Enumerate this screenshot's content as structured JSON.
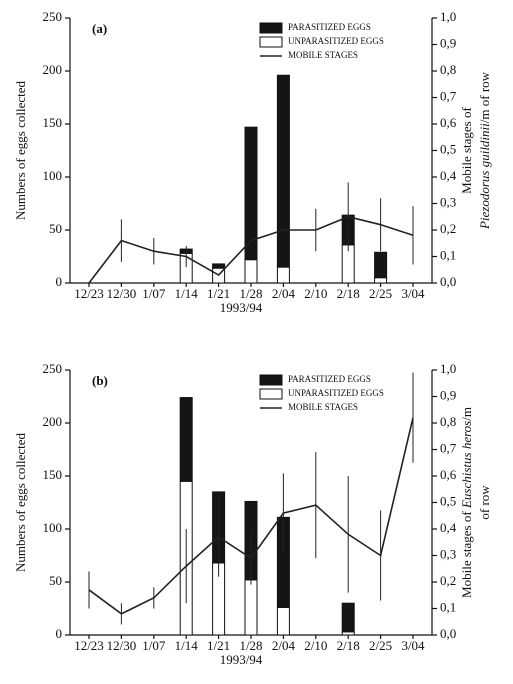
{
  "chart_data": [
    {
      "type": "bar",
      "label": "(a)",
      "ylabel": "Numbers of eggs collected",
      "y2label": [
        [
          {
            "text": "Mobile stages of",
            "italic": false
          }
        ],
        [
          {
            "text": "Piezodorus guildinii",
            "italic": true
          },
          {
            "text": "/m of row",
            "italic": false
          }
        ]
      ],
      "xlabel": "1993/94",
      "categories": [
        "12/23",
        "12/30",
        "1/07",
        "1/14",
        "1/21",
        "1/28",
        "2/04",
        "2/10",
        "2/18",
        "2/25",
        "3/04"
      ],
      "ylim": [
        0,
        250
      ],
      "yticks": [
        0,
        50,
        100,
        150,
        200,
        250
      ],
      "y2lim": [
        0,
        1
      ],
      "y2ticks": [
        {
          "value": 0,
          "label": "0,0"
        },
        {
          "value": 0.1,
          "label": "0,1"
        },
        {
          "value": 0.2,
          "label": "0,2"
        },
        {
          "value": 0.3,
          "label": "0,3"
        },
        {
          "value": 0.4,
          "label": "0,4"
        },
        {
          "value": 0.5,
          "label": "0,5"
        },
        {
          "value": 0.6,
          "label": "0,6"
        },
        {
          "value": 0.7,
          "label": "0,7"
        },
        {
          "value": 0.8,
          "label": "0,8"
        },
        {
          "value": 0.9,
          "label": "0,9"
        },
        {
          "value": 1,
          "label": "1,0"
        }
      ],
      "series": [
        {
          "name": "PARASITIZED EGGS",
          "color": "#151515",
          "values": [
            null,
            null,
            null,
            4,
            4,
            125,
            181,
            null,
            28,
            24,
            null
          ]
        },
        {
          "name": "UNPARASITIZED EGGS",
          "color": "#ffffff",
          "values": [
            null,
            null,
            null,
            28,
            14,
            22,
            15,
            null,
            36,
            5,
            null
          ]
        },
        {
          "name": "MOBILE STAGES",
          "type": "line",
          "axis": "y2",
          "color": "#222222",
          "values": [
            0.0,
            0.16,
            0.12,
            0.1,
            0.03,
            0.16,
            0.2,
            0.2,
            0.25,
            0.22,
            0.18
          ],
          "errors": [
            null,
            0.08,
            0.05,
            0.04,
            null,
            null,
            null,
            0.08,
            0.13,
            0.1,
            0.11
          ]
        }
      ]
    },
    {
      "type": "bar",
      "label": "(b)",
      "ylabel": "Numbers of eggs collected",
      "y2label": [
        [
          {
            "text": "Mobile stages of ",
            "italic": false
          },
          {
            "text": "Euschistus heros",
            "italic": true
          },
          {
            "text": "/m",
            "italic": false
          }
        ],
        [
          {
            "text": "of row",
            "italic": false
          }
        ]
      ],
      "xlabel": "1993/94",
      "categories": [
        "12/23",
        "12/30",
        "1/07",
        "1/14",
        "1/21",
        "1/28",
        "2/04",
        "2/10",
        "2/18",
        "2/25",
        "3/04"
      ],
      "ylim": [
        0,
        250
      ],
      "yticks": [
        0,
        50,
        100,
        150,
        200,
        250
      ],
      "y2lim": [
        0,
        1
      ],
      "y2ticks": [
        {
          "value": 0,
          "label": "0,0"
        },
        {
          "value": 0.1,
          "label": "0,1"
        },
        {
          "value": 0.2,
          "label": "0,2"
        },
        {
          "value": 0.3,
          "label": "0,3"
        },
        {
          "value": 0.4,
          "label": "0,4"
        },
        {
          "value": 0.5,
          "label": "0,5"
        },
        {
          "value": 0.6,
          "label": "0,6"
        },
        {
          "value": 0.7,
          "label": "0,7"
        },
        {
          "value": 0.8,
          "label": "0,8"
        },
        {
          "value": 0.9,
          "label": "0,9"
        },
        {
          "value": 1,
          "label": "1,0"
        }
      ],
      "series": [
        {
          "name": "PARASITIZED EGGS",
          "color": "#151515",
          "values": [
            null,
            null,
            null,
            79,
            67,
            74,
            85,
            null,
            27,
            null,
            null
          ]
        },
        {
          "name": "UNPARASITIZED EGGS",
          "color": "#ffffff",
          "values": [
            null,
            null,
            null,
            145,
            68,
            52,
            26,
            null,
            3,
            null,
            null
          ]
        },
        {
          "name": "MOBILE STAGES",
          "type": "line",
          "axis": "y2",
          "color": "#222222",
          "values": [
            0.17,
            0.08,
            0.14,
            0.26,
            0.37,
            0.29,
            0.46,
            0.49,
            0.38,
            0.3,
            0.82
          ],
          "errors": [
            0.07,
            0.04,
            0.04,
            0.14,
            0.15,
            0.1,
            0.15,
            0.2,
            0.22,
            0.17,
            0.17
          ]
        }
      ]
    }
  ]
}
